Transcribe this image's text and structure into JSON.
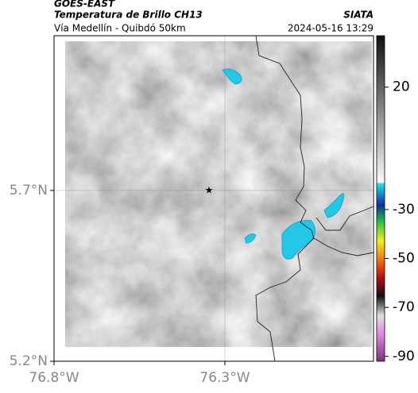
{
  "header": {
    "title": "GOES-EAST",
    "subtitle": "Temperatura de Brillo CH13",
    "source": "SIATA",
    "route": "Vía Medellín - Quibdó 50km",
    "timestamp": "2024-05-16 13:29"
  },
  "map": {
    "xlim": [
      -76.8,
      -75.865
    ],
    "ylim": [
      5.2,
      6.153
    ],
    "xticks": [
      {
        "value": -76.8,
        "label": "76.8°W"
      },
      {
        "value": -76.3,
        "label": "76.3°W"
      }
    ],
    "yticks": [
      {
        "value": 5.2,
        "label": "5.2°N"
      },
      {
        "value": 5.7,
        "label": "5.7°N"
      }
    ],
    "grid": true
  },
  "colorbar": {
    "lim": [
      41,
      -92
    ],
    "ticks": [
      20,
      -30,
      -50,
      -70,
      -90
    ]
  }
}
